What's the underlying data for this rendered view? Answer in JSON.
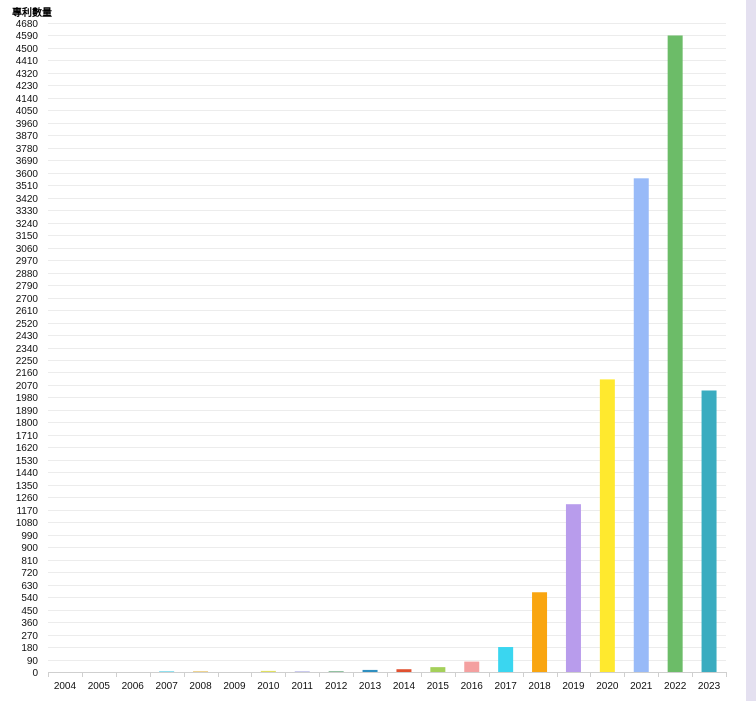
{
  "chart_data": {
    "type": "bar",
    "ylabel": "專利數量",
    "xlabel": "",
    "title": "",
    "categories": [
      "2004",
      "2005",
      "2006",
      "2007",
      "2008",
      "2009",
      "2010",
      "2011",
      "2012",
      "2013",
      "2014",
      "2015",
      "2016",
      "2017",
      "2018",
      "2019",
      "2020",
      "2021",
      "2022",
      "2023"
    ],
    "values": [
      0,
      0,
      0,
      5,
      5,
      0,
      8,
      4,
      7,
      15,
      20,
      35,
      75,
      180,
      575,
      1210,
      2110,
      3560,
      4590,
      2030
    ],
    "ylim": [
      0,
      4680
    ],
    "ytick_step": 90,
    "grid": true,
    "legend": "none",
    "colors": [
      "#7fd3e0",
      "#7fd3e0",
      "#7fd3e0",
      "#5fd3e8",
      "#e8c060",
      "#b0b0b0",
      "#e0e060",
      "#a0a0e0",
      "#90c0a0",
      "#2f8fc0",
      "#e05030",
      "#a4d05a",
      "#f4a0a0",
      "#3ad6f0",
      "#f9a510",
      "#b89cec",
      "#ffe92e",
      "#98baf8",
      "#6cbc68",
      "#3aacc0"
    ]
  }
}
